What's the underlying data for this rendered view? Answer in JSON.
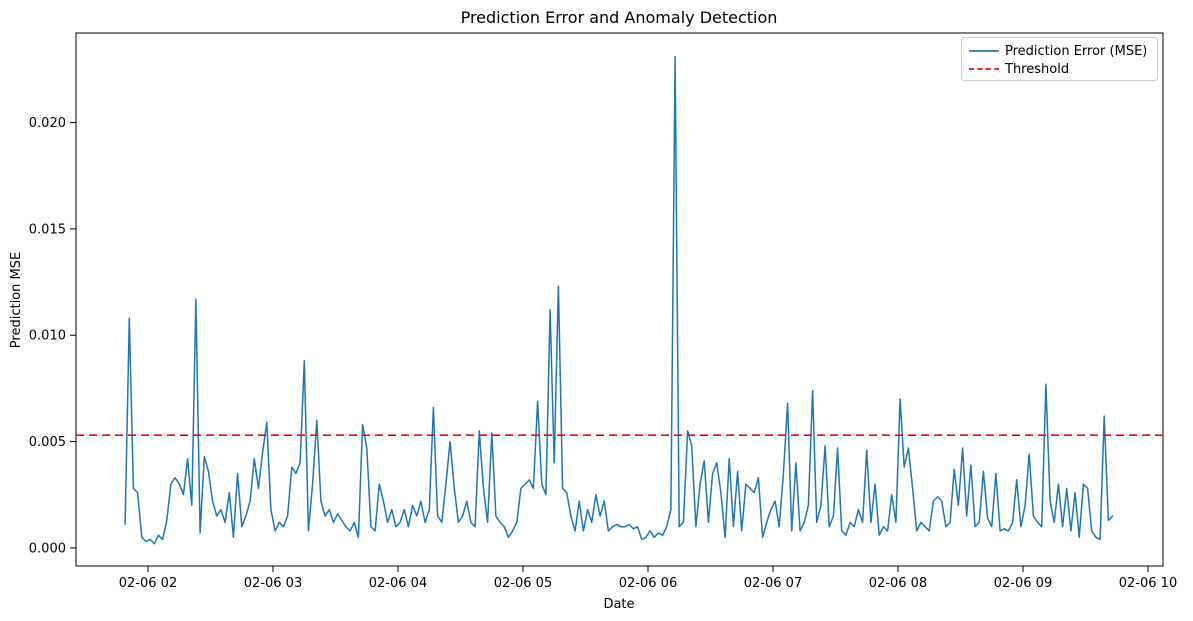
{
  "chart_data": {
    "type": "line",
    "title": "Prediction Error and Anomaly Detection",
    "xlabel": "Date",
    "ylabel": "Prediction MSE",
    "grid": false,
    "background": "#ffffff",
    "xlim_hours": [
      1.424,
      10.12
    ],
    "ylim": [
      -0.00085,
      0.02421
    ],
    "x_tick_hours": [
      2,
      3,
      4,
      5,
      6,
      7,
      8,
      9,
      10
    ],
    "x_tick_labels": [
      "02-06 02",
      "02-06 03",
      "02-06 04",
      "02-06 05",
      "02-06 06",
      "02-06 07",
      "02-06 08",
      "02-06 09",
      "02-06 10"
    ],
    "y_tick_values": [
      0.0,
      0.005,
      0.01,
      0.015,
      0.02
    ],
    "y_tick_labels": [
      "0.000",
      "0.005",
      "0.010",
      "0.015",
      "0.020"
    ],
    "legend": {
      "position": "upper right",
      "entries": [
        {
          "label": "Prediction Error (MSE)",
          "color": "#1f77b4",
          "style": "solid"
        },
        {
          "label": "Threshold",
          "color": "#ff0000",
          "style": "dashed"
        }
      ]
    },
    "series": [
      {
        "name": "Prediction Error (MSE)",
        "color": "#1f77b4",
        "style": "solid",
        "x_start_hour": 1.8167,
        "x_step_hour": 0.033333,
        "values": [
          0.0011,
          0.0108,
          0.0028,
          0.0026,
          0.0005,
          0.0003,
          0.0004,
          0.0002,
          0.0006,
          0.0004,
          0.0013,
          0.003,
          0.0033,
          0.003,
          0.0025,
          0.0042,
          0.002,
          0.0117,
          0.0007,
          0.0043,
          0.0036,
          0.0022,
          0.0015,
          0.0018,
          0.0012,
          0.0026,
          0.0005,
          0.0035,
          0.001,
          0.0015,
          0.0022,
          0.0042,
          0.0028,
          0.0045,
          0.0059,
          0.0018,
          0.0008,
          0.0012,
          0.001,
          0.0015,
          0.0038,
          0.0035,
          0.004,
          0.0088,
          0.0008,
          0.003,
          0.006,
          0.0022,
          0.0015,
          0.0018,
          0.0012,
          0.0016,
          0.0013,
          0.001,
          0.0008,
          0.0012,
          0.0005,
          0.0058,
          0.0047,
          0.001,
          0.0008,
          0.003,
          0.0022,
          0.0012,
          0.0018,
          0.001,
          0.0012,
          0.0018,
          0.001,
          0.002,
          0.0015,
          0.0022,
          0.0012,
          0.0018,
          0.0066,
          0.0015,
          0.0012,
          0.003,
          0.005,
          0.0028,
          0.0012,
          0.0015,
          0.0022,
          0.0012,
          0.001,
          0.0055,
          0.0028,
          0.0012,
          0.0054,
          0.0015,
          0.0012,
          0.001,
          0.0005,
          0.0008,
          0.0012,
          0.0028,
          0.003,
          0.0032,
          0.0028,
          0.0069,
          0.003,
          0.0025,
          0.0112,
          0.004,
          0.0123,
          0.0028,
          0.0026,
          0.0015,
          0.0008,
          0.0022,
          0.0008,
          0.0018,
          0.0012,
          0.0025,
          0.0015,
          0.0022,
          0.0008,
          0.001,
          0.0011,
          0.001,
          0.001,
          0.0011,
          0.0009,
          0.001,
          0.0004,
          0.0005,
          0.0008,
          0.0005,
          0.0007,
          0.0006,
          0.001,
          0.0018,
          0.0231,
          0.001,
          0.0012,
          0.0055,
          0.0048,
          0.001,
          0.003,
          0.0041,
          0.0012,
          0.0035,
          0.004,
          0.0026,
          0.0005,
          0.0042,
          0.001,
          0.0036,
          0.0008,
          0.003,
          0.0028,
          0.0026,
          0.0033,
          0.0005,
          0.0012,
          0.0018,
          0.0022,
          0.001,
          0.0035,
          0.0068,
          0.0008,
          0.004,
          0.0008,
          0.0012,
          0.002,
          0.0074,
          0.0012,
          0.002,
          0.0048,
          0.001,
          0.0015,
          0.0047,
          0.0008,
          0.0006,
          0.0012,
          0.001,
          0.0018,
          0.0012,
          0.0046,
          0.0012,
          0.003,
          0.0006,
          0.001,
          0.0008,
          0.0025,
          0.0012,
          0.007,
          0.0038,
          0.0047,
          0.0028,
          0.0008,
          0.0012,
          0.001,
          0.0008,
          0.0022,
          0.0024,
          0.0022,
          0.001,
          0.0012,
          0.0037,
          0.002,
          0.0047,
          0.0015,
          0.0039,
          0.001,
          0.0012,
          0.0036,
          0.0014,
          0.001,
          0.0035,
          0.0008,
          0.0009,
          0.0008,
          0.0012,
          0.0032,
          0.001,
          0.002,
          0.0044,
          0.0015,
          0.0012,
          0.001,
          0.0077,
          0.0022,
          0.0012,
          0.003,
          0.001,
          0.0028,
          0.0008,
          0.0026,
          0.0005,
          0.003,
          0.0028,
          0.0008,
          0.0005,
          0.0004,
          0.0062,
          0.0013,
          0.0015
        ]
      },
      {
        "name": "Threshold",
        "color": "#ff0000",
        "style": "dashed",
        "value": 0.0053
      }
    ]
  }
}
